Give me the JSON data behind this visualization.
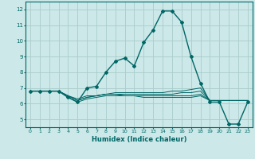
{
  "xlabel": "Humidex (Indice chaleur)",
  "ylabel": "",
  "xlim": [
    -0.5,
    23.5
  ],
  "ylim": [
    4.5,
    12.5
  ],
  "xticks": [
    0,
    1,
    2,
    3,
    4,
    5,
    6,
    7,
    8,
    9,
    10,
    11,
    12,
    13,
    14,
    15,
    16,
    17,
    18,
    19,
    20,
    21,
    22,
    23
  ],
  "yticks": [
    5,
    6,
    7,
    8,
    9,
    10,
    11,
    12
  ],
  "background_color": "#cce8e8",
  "grid_color": "#aacccc",
  "line_color": "#006666",
  "lines": [
    [
      6.8,
      6.8,
      6.8,
      6.8,
      6.4,
      6.1,
      7.0,
      7.1,
      8.0,
      8.7,
      8.9,
      8.4,
      9.9,
      10.7,
      11.9,
      11.9,
      11.2,
      9.0,
      7.3,
      6.1,
      6.1,
      4.7,
      4.7,
      6.1
    ],
    [
      6.8,
      6.8,
      6.8,
      6.8,
      6.5,
      6.3,
      6.5,
      6.5,
      6.6,
      6.7,
      6.7,
      6.7,
      6.7,
      6.7,
      6.7,
      6.8,
      6.8,
      6.9,
      7.0,
      6.2,
      6.2,
      6.2,
      6.2,
      6.2
    ],
    [
      6.8,
      6.8,
      6.8,
      6.8,
      6.5,
      6.2,
      6.4,
      6.5,
      6.6,
      6.6,
      6.6,
      6.6,
      6.6,
      6.6,
      6.6,
      6.6,
      6.7,
      6.7,
      6.8,
      6.2,
      6.2,
      6.2,
      6.2,
      6.2
    ],
    [
      6.8,
      6.8,
      6.8,
      6.8,
      6.5,
      6.2,
      6.4,
      6.5,
      6.6,
      6.6,
      6.5,
      6.5,
      6.5,
      6.5,
      6.5,
      6.5,
      6.5,
      6.5,
      6.6,
      6.2,
      6.2,
      6.2,
      6.2,
      6.2
    ],
    [
      6.8,
      6.8,
      6.8,
      6.8,
      6.4,
      6.1,
      6.3,
      6.4,
      6.5,
      6.5,
      6.5,
      6.5,
      6.4,
      6.4,
      6.4,
      6.4,
      6.4,
      6.4,
      6.5,
      6.2,
      6.2,
      6.2,
      6.2,
      6.2
    ]
  ]
}
